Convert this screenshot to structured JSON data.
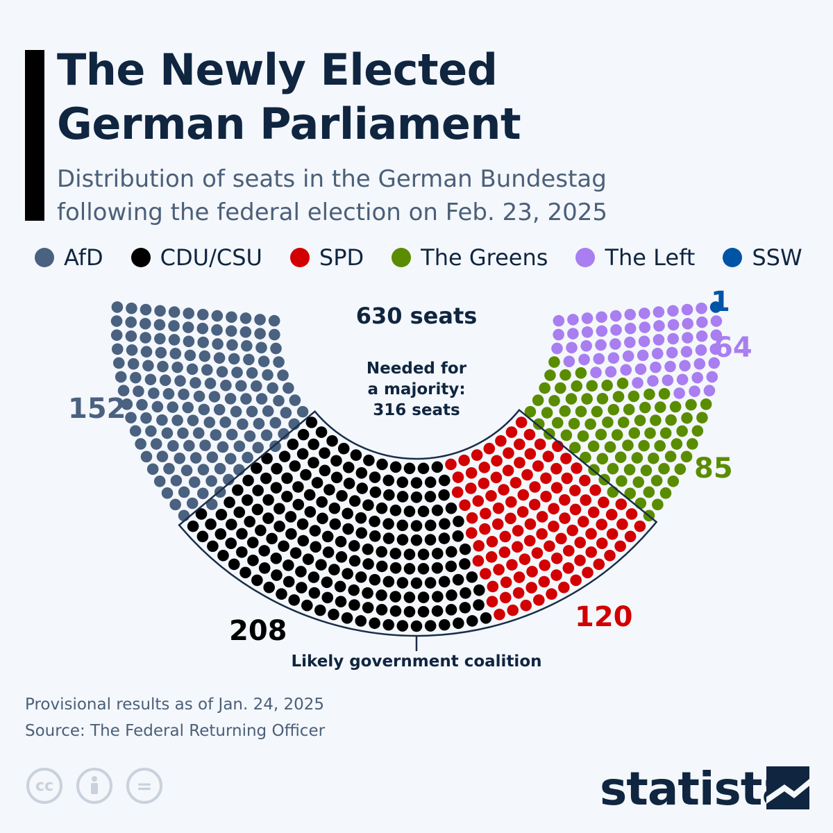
{
  "title_line1": "The Newly Elected",
  "title_line2": "German Parliament",
  "subtitle_line1": "Distribution of seats in the German Bundestag",
  "subtitle_line2": "following the federal election on Feb. 23, 2025",
  "chart_data": {
    "type": "parliament",
    "total_label": "630 seats",
    "majority_label_lines": [
      "Needed for",
      "a majority:",
      "316 seats"
    ],
    "total_seats": 630,
    "majority": 316,
    "legend_position": "top",
    "series": [
      {
        "name": "AfD",
        "value": 152,
        "label": "152",
        "color": "#4a6180"
      },
      {
        "name": "CDU/CSU",
        "value": 208,
        "label": "208",
        "color": "#000000"
      },
      {
        "name": "SPD",
        "value": 120,
        "label": "120",
        "color": "#d20000"
      },
      {
        "name": "The Greens",
        "value": 85,
        "label": "85",
        "color": "#5a8c00"
      },
      {
        "name": "The Left",
        "value": 64,
        "label": "64",
        "color": "#a97ef0"
      },
      {
        "name": "SSW",
        "value": 1,
        "label": "1",
        "color": "#0054a6"
      }
    ],
    "coalition": {
      "label": "Likely government coalition",
      "parties": [
        "CDU/CSU",
        "SPD"
      ]
    }
  },
  "footer": {
    "note": "Provisional results as of Jan. 24, 2025",
    "source": "Source: The Federal Returning Officer",
    "license_icons": [
      "cc-icon",
      "attribution-icon",
      "no-derivatives-icon"
    ],
    "cc_text": "cc",
    "nd_text": "="
  },
  "logo": "statista"
}
